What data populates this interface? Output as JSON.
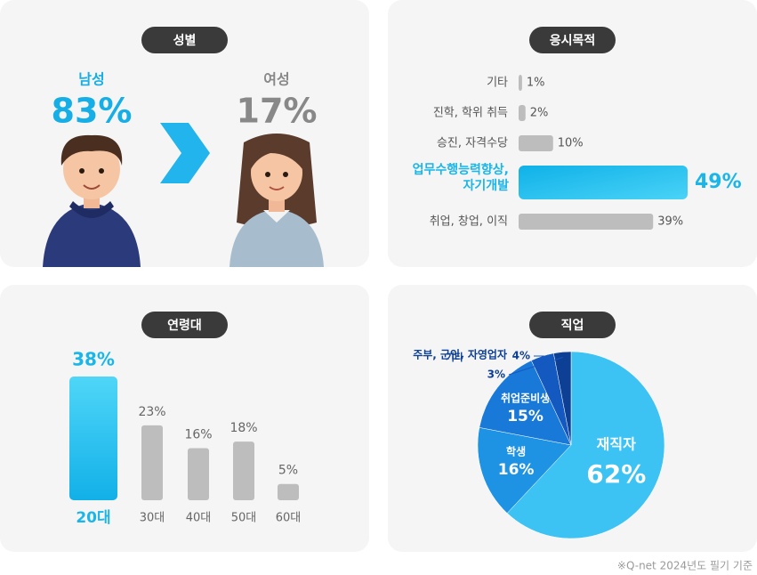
{
  "chart_data": [
    {
      "type": "gender",
      "title": "성별",
      "categories": [
        "남성",
        "여성"
      ],
      "values": [
        83,
        17
      ],
      "value_labels": [
        "83%",
        "17%"
      ],
      "colors": [
        "#16aee6",
        "#888888"
      ]
    },
    {
      "type": "hbar",
      "title": "응시목적",
      "categories": [
        "기타",
        "진학, 학위 취득",
        "승진, 자격수당",
        "업무수행능력향상,\n자기개발",
        "취업, 창업, 이직"
      ],
      "values": [
        1,
        2,
        10,
        49,
        39
      ],
      "value_labels": [
        "1%",
        "2%",
        "10%",
        "49%",
        "39%"
      ],
      "color": "#bdbdbd",
      "highlight_color": "#1ab6ea"
    },
    {
      "type": "bar",
      "title": "연령대",
      "categories": [
        "20대",
        "30대",
        "40대",
        "50대",
        "60대"
      ],
      "values": [
        38,
        23,
        16,
        18,
        5
      ],
      "value_labels": [
        "38%",
        "23%",
        "16%",
        "18%",
        "5%"
      ],
      "color": "#bdbdbd",
      "highlight_color": "#1ab6ea"
    },
    {
      "type": "pie",
      "title": "직업",
      "categories": [
        "재직자",
        "학생",
        "취업준비생",
        "주부, 군인,\n자영업자",
        "기타"
      ],
      "values": [
        62,
        16,
        15,
        4,
        3
      ],
      "value_labels": [
        "62%",
        "16%",
        "15%",
        "4%",
        "3%"
      ],
      "colors": [
        "#3cc3f3",
        "#1e93e4",
        "#1979d8",
        "#1459c0",
        "#0d3f95"
      ]
    }
  ],
  "footnote": "※Q-net 2024년도 필기 기준"
}
